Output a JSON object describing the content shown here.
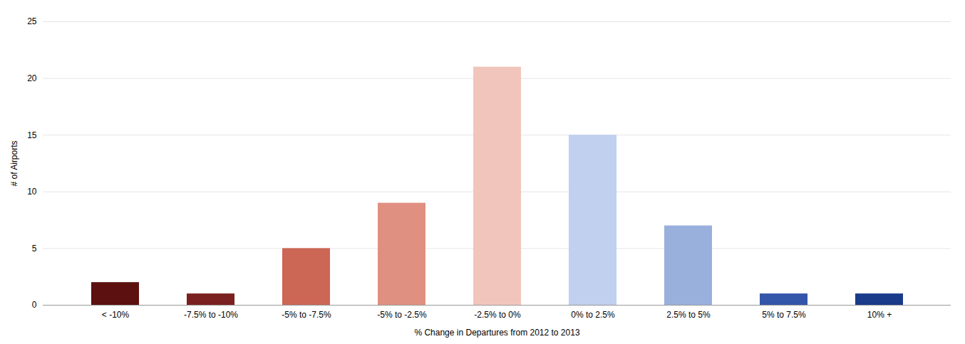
{
  "chart_data": {
    "type": "bar",
    "categories": [
      "< -10%",
      "-7.5% to -10%",
      "-5% to -7.5%",
      "-5% to -2.5%",
      "-2.5% to 0%",
      "0% to 2.5%",
      "2.5% to 5%",
      "5% to 7.5%",
      "10% +"
    ],
    "values": [
      2,
      1,
      5,
      9,
      21,
      15,
      7,
      1,
      1
    ],
    "colors": [
      "#5C1010",
      "#7B2020",
      "#CC6655",
      "#E09080",
      "#F2C5BC",
      "#C0D0EE",
      "#99B0DD",
      "#3355AA",
      "#1A3A8A"
    ],
    "xlabel": "% Change in Departures from 2012 to 2013",
    "ylabel": "# of Airports",
    "ylim": [
      0,
      25
    ],
    "yticks": [
      0,
      5,
      10,
      15,
      20,
      25
    ],
    "grid": true
  }
}
